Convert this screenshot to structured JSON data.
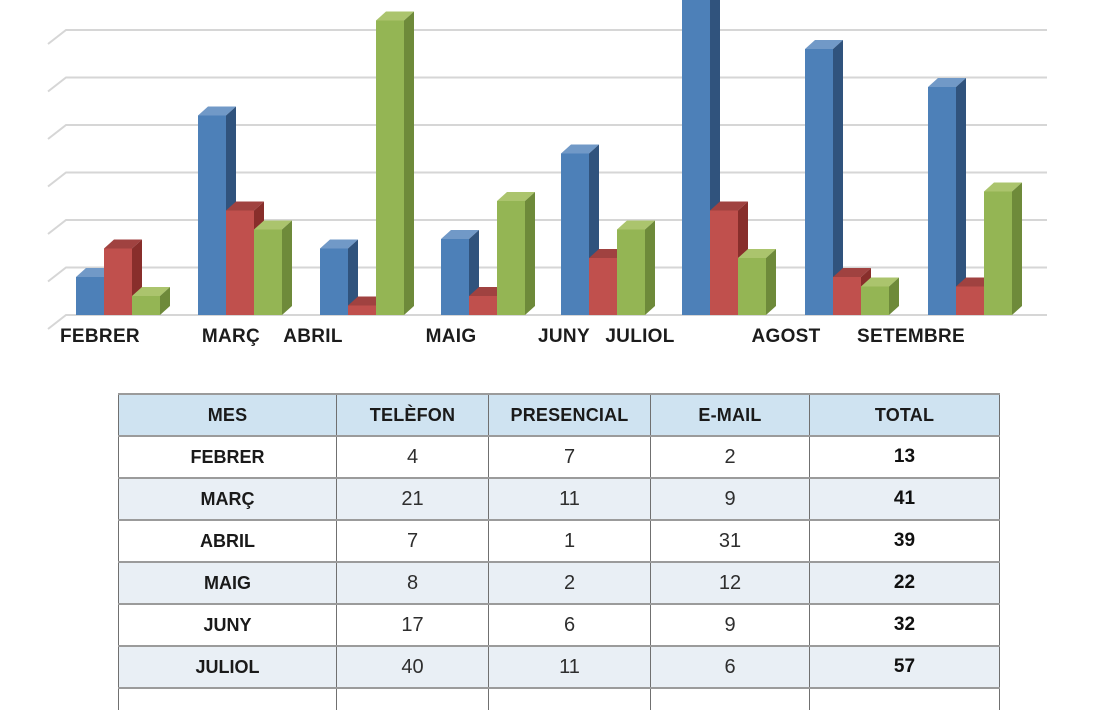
{
  "chart_data": {
    "type": "bar",
    "style": "3d-clustered-column",
    "title": "",
    "xlabel": "",
    "ylabel": "",
    "ylim": [
      0,
      30
    ],
    "gridline_step": 5,
    "grid": true,
    "legend_position": "none",
    "categories": [
      "FEBRER",
      "MARÇ",
      "ABRIL",
      "MAIG",
      "JUNY",
      "JULIOL",
      "AGOST",
      "SETEMBRE"
    ],
    "series": [
      {
        "name": "TELÈFON",
        "color": "#4d80b8",
        "color_top": "#7199c7",
        "color_side": "#30537d",
        "values": [
          4,
          21,
          7,
          8,
          17,
          40,
          28,
          24
        ]
      },
      {
        "name": "PRESENCIAL",
        "color": "#c0504d",
        "color_top": "#a04240",
        "color_side": "#882e2b",
        "values": [
          7,
          11,
          1,
          2,
          6,
          11,
          4,
          3
        ]
      },
      {
        "name": "E-MAIL",
        "color": "#94b554",
        "color_top": "#abc46d",
        "color_side": "#6e8a3a",
        "values": [
          2,
          9,
          31,
          12,
          9,
          6,
          3,
          13
        ]
      }
    ]
  },
  "table": {
    "headers": [
      "MES",
      "TELÈFON",
      "PRESENCIAL",
      "E-MAIL",
      "TOTAL"
    ],
    "rows": [
      [
        "FEBRER",
        "4",
        "7",
        "2",
        "13"
      ],
      [
        "MARÇ",
        "21",
        "11",
        "9",
        "41"
      ],
      [
        "ABRIL",
        "7",
        "1",
        "31",
        "39"
      ],
      [
        "MAIG",
        "8",
        "2",
        "12",
        "22"
      ],
      [
        "JUNY",
        "17",
        "6",
        "9",
        "32"
      ],
      [
        "JULIOL",
        "40",
        "11",
        "6",
        "57"
      ]
    ]
  },
  "colors": {
    "background": "#ffffff",
    "gridline": "#d6d6d6",
    "axis_label_text": "#1c1c1c",
    "bar_blue": "#4d80b8",
    "bar_red": "#c0504d",
    "bar_green": "#94b554",
    "table_header_bg": "#cfe3f1",
    "table_row_bg": "#ffffff",
    "table_row_alt_bg": "#e9eff5",
    "table_border_horizontal": "#9b9b9b",
    "table_border_vertical": "#707070",
    "table_text": "#1a1a1a"
  }
}
